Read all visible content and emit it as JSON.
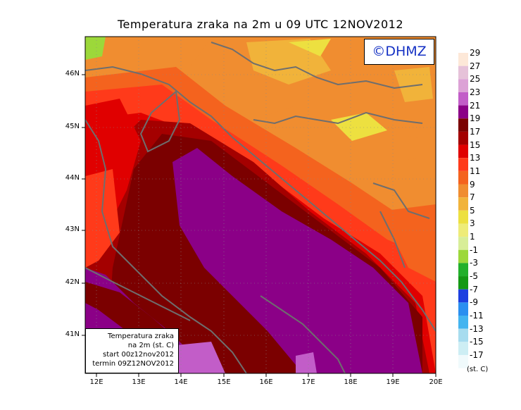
{
  "title": "Temperatura zraka na 2m u 09 UTC 12NOV2012",
  "logo_text": "©DHMZ",
  "info_box": {
    "line1": "Temperatura zraka",
    "line2": "na 2m (st. C)",
    "line3": "start 00z12nov2012",
    "line4": "termin 09Z12NOV2012"
  },
  "lat_labels": [
    "46N",
    "45N",
    "44N",
    "43N",
    "42N",
    "41N"
  ],
  "lon_labels": [
    "12E",
    "13E",
    "14E",
    "15E",
    "16E",
    "17E",
    "18E",
    "19E",
    "20E"
  ],
  "colorbar": {
    "labels": [
      "29",
      "27",
      "25",
      "23",
      "21",
      "19",
      "17",
      "15",
      "13",
      "11",
      "9",
      "7",
      "5",
      "3",
      "1",
      "-1",
      "-3",
      "-5",
      "-7",
      "-9",
      "-11",
      "-13",
      "-15",
      "-17"
    ],
    "colors": [
      "#fde8d8",
      "#e6c2d9",
      "#dca2d6",
      "#c25dc8",
      "#8b0087",
      "#7b0000",
      "#a40000",
      "#e00000",
      "#ff3a1a",
      "#f4631e",
      "#f08d30",
      "#f1b33a",
      "#ede040",
      "#eeec78",
      "#d8ee98",
      "#9cd83a",
      "#22b02b",
      "#149814",
      "#1c3fe0",
      "#2a8ff0",
      "#43b4f0",
      "#a7dcef",
      "#cdeef4",
      "#f0fafc"
    ],
    "units": "(st. C)"
  }
}
